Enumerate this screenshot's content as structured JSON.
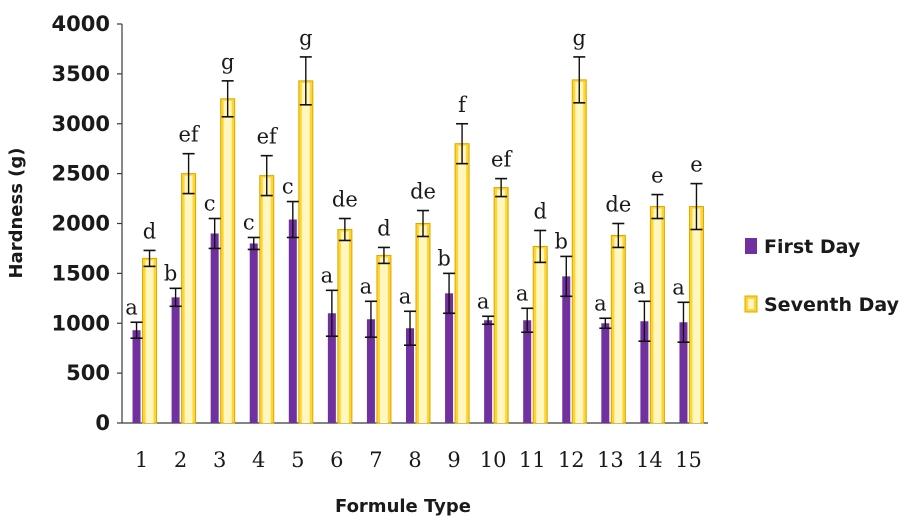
{
  "chart_data": {
    "type": "bar",
    "xlabel": "Formule Type",
    "ylabel": "Hardness (g)",
    "ylim": [
      0,
      4000
    ],
    "yticks": [
      0,
      500,
      1000,
      1500,
      2000,
      2500,
      3000,
      3500,
      4000
    ],
    "grid": false,
    "legend_position": "right",
    "categories": [
      "1",
      "2",
      "3",
      "4",
      "5",
      "6",
      "7",
      "8",
      "9",
      "10",
      "11",
      "12",
      "13",
      "14",
      "15"
    ],
    "series": [
      {
        "name": "First Day",
        "color": "#7030a0",
        "values": [
          930,
          1260,
          1900,
          1800,
          2040,
          1100,
          1040,
          950,
          1300,
          1030,
          1030,
          1470,
          1000,
          1020,
          1010
        ],
        "errors": [
          80,
          90,
          150,
          60,
          180,
          230,
          180,
          170,
          200,
          40,
          120,
          200,
          50,
          200,
          200
        ],
        "labels": [
          "a",
          "b",
          "c",
          "c",
          "c",
          "a",
          "a",
          "a",
          "b",
          "a",
          "a",
          "b",
          "a",
          "a",
          "a"
        ]
      },
      {
        "name": "Seventh Day",
        "color": "#ffd52e",
        "values": [
          1650,
          2500,
          3250,
          2480,
          3430,
          1940,
          1680,
          2000,
          2800,
          2360,
          1770,
          3440,
          1880,
          2170,
          2170
        ],
        "errors": [
          80,
          200,
          180,
          200,
          240,
          110,
          80,
          130,
          200,
          90,
          160,
          230,
          120,
          120,
          230
        ],
        "labels": [
          "d",
          "ef",
          "g",
          "ef",
          "g",
          "de",
          "d",
          "de",
          "f",
          "ef",
          "d",
          "g",
          "de",
          "e",
          "e"
        ]
      }
    ]
  }
}
